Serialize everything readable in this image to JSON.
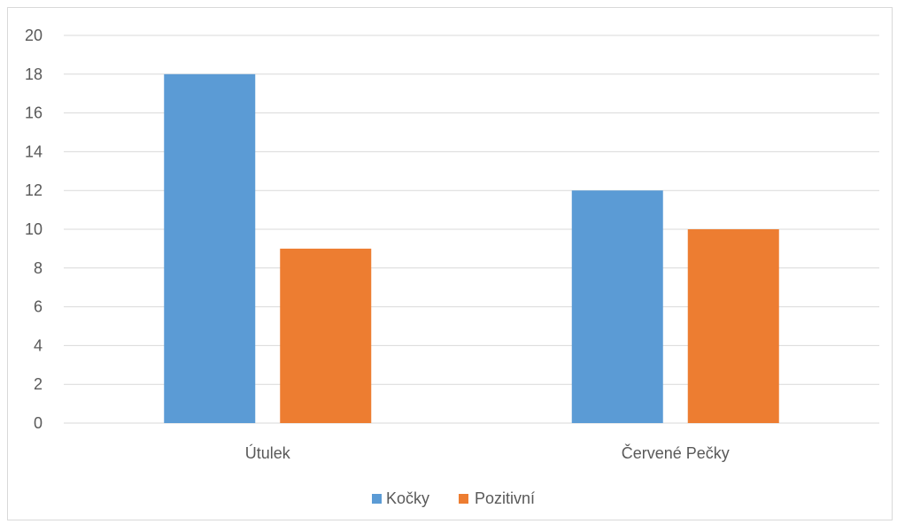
{
  "chart_data": {
    "type": "bar",
    "title": "",
    "xlabel": "",
    "ylabel": "",
    "categories": [
      "Útulek",
      "Červené Pečky"
    ],
    "series": [
      {
        "name": "Kočky",
        "color": "#5b9bd5",
        "values": [
          18,
          12
        ]
      },
      {
        "name": "Pozitivní",
        "color": "#ed7d31",
        "values": [
          9,
          10
        ]
      }
    ],
    "ylim": [
      0,
      20
    ],
    "ytick_step": 2,
    "ytick_labels": [
      "0",
      "2",
      "4",
      "6",
      "8",
      "10",
      "12",
      "14",
      "16",
      "18",
      "20"
    ],
    "grid": true,
    "legend_position": "bottom"
  }
}
